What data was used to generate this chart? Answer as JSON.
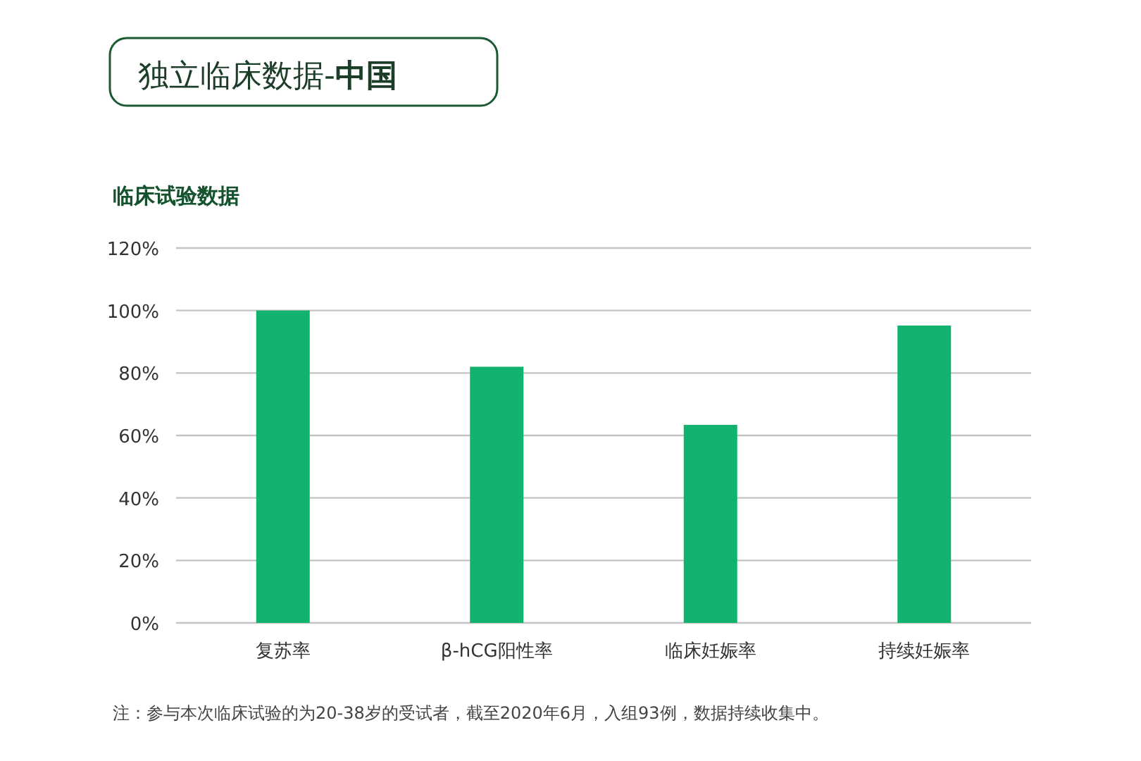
{
  "chart_data": {
    "type": "bar",
    "title": "独立临床数据-**中国**",
    "subtitle": "临床试验数据",
    "categories": [
      "复苏率",
      "β-hCG阳性率",
      "临床妊娠率",
      "持续妊娠率"
    ],
    "values": [
      100,
      82,
      63.4,
      95.2
    ],
    "color": "#12b26f",
    "ylim": [
      0,
      120
    ],
    "yticks": [
      {
        "value": 0,
        "label": "0%"
      },
      {
        "value": 20,
        "label": "20%"
      },
      {
        "value": 40,
        "label": "40%"
      },
      {
        "value": 60,
        "label": "60%"
      },
      {
        "value": 80,
        "label": "80%"
      },
      {
        "value": 100,
        "label": "100%"
      },
      {
        "value": 120,
        "label": "120%"
      }
    ],
    "grid": "y",
    "annotations": [
      "注：参与本次临床试验的为20-38岁的受试者，截至2020年6月，入组93例，数据持续收集中。"
    ]
  }
}
